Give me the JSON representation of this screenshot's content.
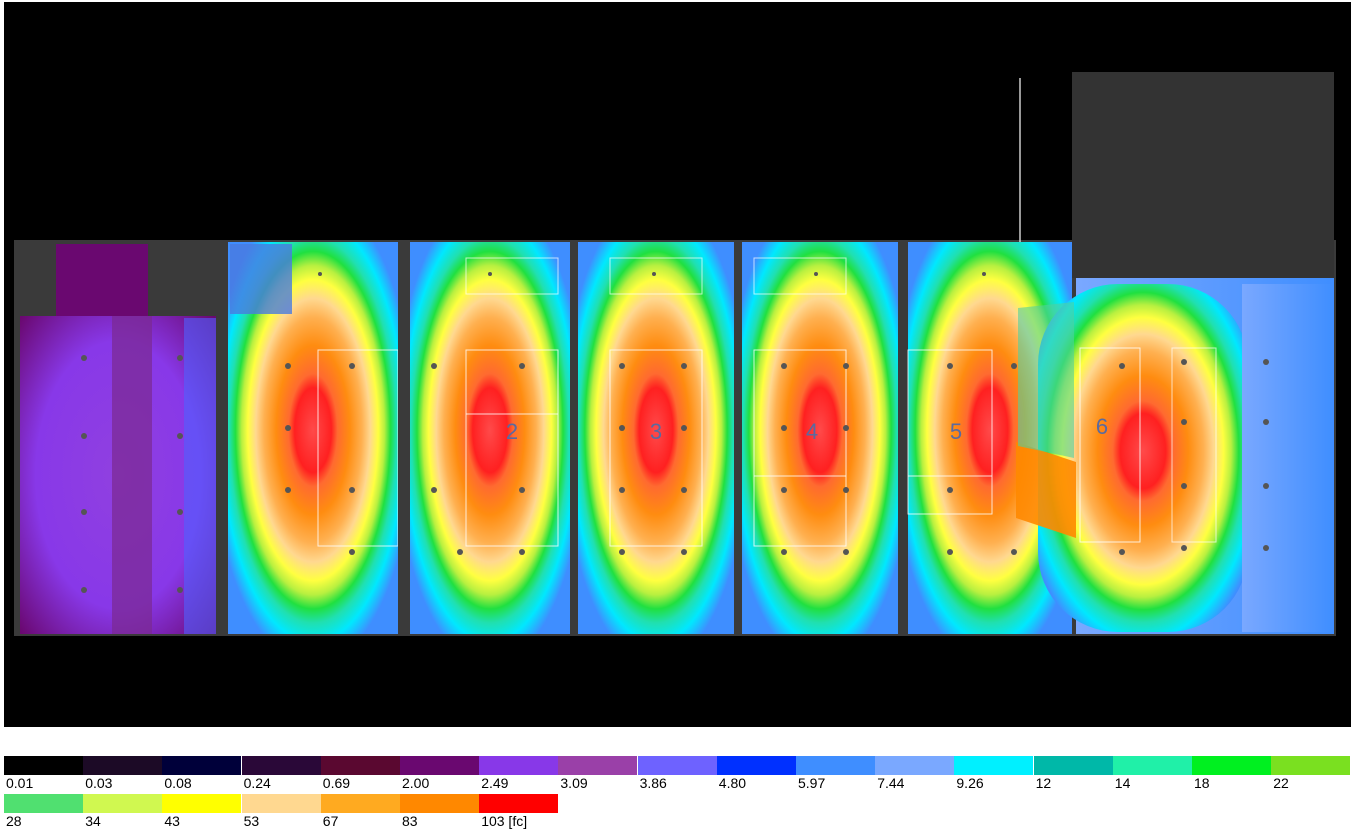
{
  "legend": {
    "unit_label": "103 [fc]",
    "rows": [
      [
        {
          "label": "0.01",
          "color": "#000000"
        },
        {
          "label": "0.03",
          "color": "#1c0a26"
        },
        {
          "label": "0.08",
          "color": "#00003a"
        },
        {
          "label": "0.24",
          "color": "#2a0838"
        },
        {
          "label": "0.69",
          "color": "#5a0830"
        },
        {
          "label": "2.00",
          "color": "#6a0870"
        },
        {
          "label": "2.49",
          "color": "#8838e8"
        },
        {
          "label": "3.09",
          "color": "#9a40a8"
        },
        {
          "label": "3.86",
          "color": "#6e62ff"
        },
        {
          "label": "4.80",
          "color": "#0030ff"
        },
        {
          "label": "5.97",
          "color": "#3f8eff"
        },
        {
          "label": "7.44",
          "color": "#7aa8ff"
        },
        {
          "label": "9.26",
          "color": "#00f0ff"
        },
        {
          "label": "12",
          "color": "#00b8a8"
        },
        {
          "label": "14",
          "color": "#20f0a8"
        },
        {
          "label": "18",
          "color": "#00f020"
        },
        {
          "label": "22",
          "color": "#7ae020"
        }
      ],
      [
        {
          "label": "28",
          "color": "#50e070"
        },
        {
          "label": "34",
          "color": "#d0f850"
        },
        {
          "label": "43",
          "color": "#ffff00"
        },
        {
          "label": "53",
          "color": "#ffd890"
        },
        {
          "label": "67",
          "color": "#ffaa20"
        },
        {
          "label": "83",
          "color": "#ff8800"
        },
        {
          "label": "103 [fc]",
          "color": "#ff0000"
        }
      ]
    ]
  },
  "courts": [
    {
      "number": "2"
    },
    {
      "number": "3"
    },
    {
      "number": "4"
    },
    {
      "number": "5"
    },
    {
      "number": "6"
    }
  ]
}
